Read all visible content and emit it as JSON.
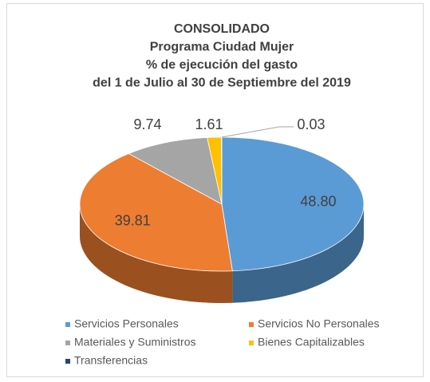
{
  "chart_data": {
    "type": "pie3d",
    "title": [
      "CONSOLIDADO",
      "Programa Ciudad Mujer",
      "% de ejecución del gasto",
      "del 1 de Julio al 30 de Septiembre del 2019"
    ],
    "categories": [
      "Servicios Personales",
      "Servicios No Personales",
      "Materiales y Suministros",
      "Bienes Capitalizables",
      "Transferencias"
    ],
    "values": [
      48.8,
      39.81,
      9.74,
      1.61,
      0.03
    ],
    "value_labels": [
      "48.80",
      "39.81",
      "9.74",
      "1.61",
      "0.03"
    ],
    "colors": [
      "#5b9bd5",
      "#ed7d31",
      "#a5a5a5",
      "#ffc000",
      "#264478"
    ],
    "legend": "bottom"
  }
}
